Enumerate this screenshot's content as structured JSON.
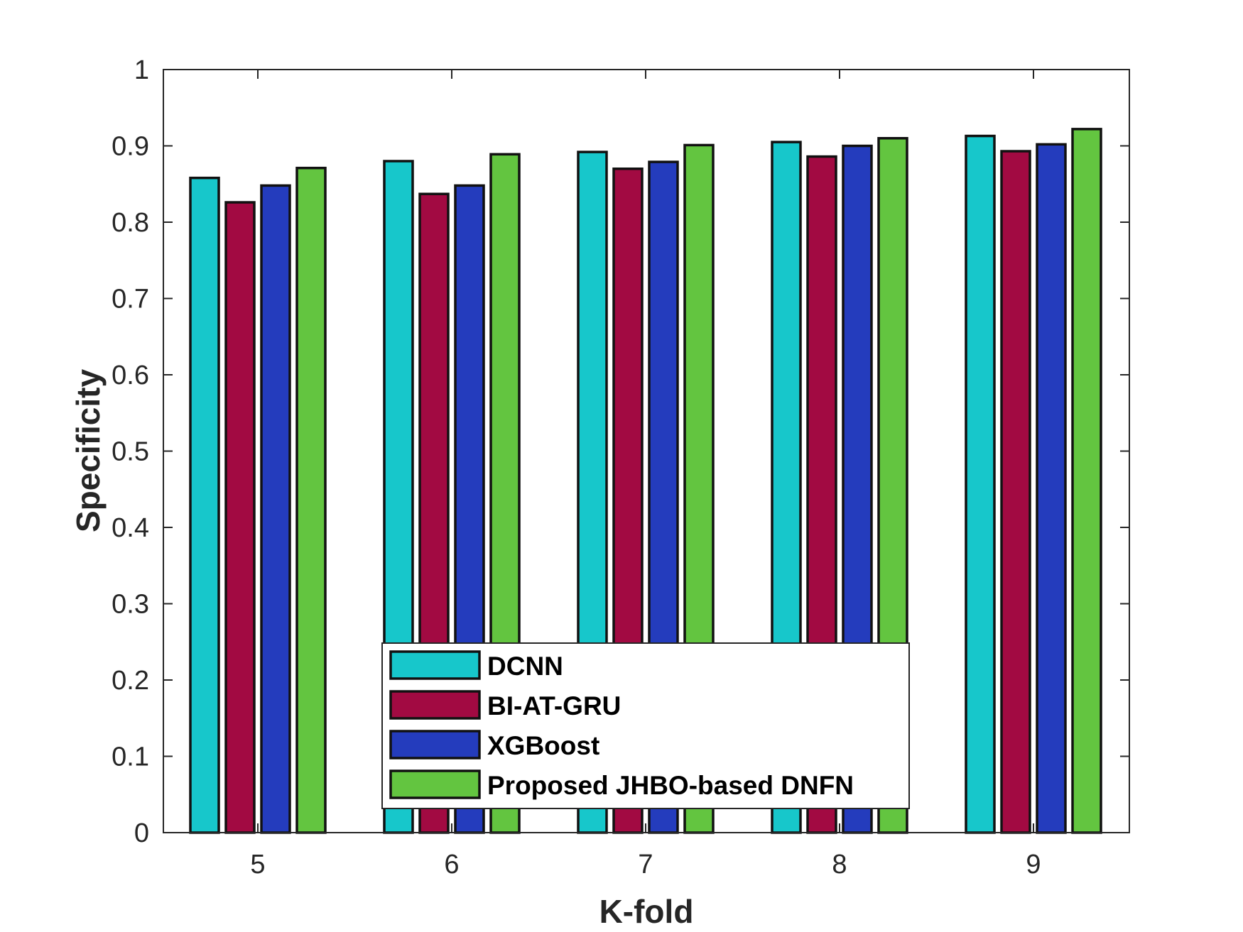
{
  "chart_data": {
    "type": "bar",
    "xlabel": "K-fold",
    "ylabel": "Specificity",
    "categories": [
      "5",
      "6",
      "7",
      "8",
      "9"
    ],
    "ylim": [
      0,
      1
    ],
    "yticks": [
      "0",
      "0.1",
      "0.2",
      "0.3",
      "0.4",
      "0.5",
      "0.6",
      "0.7",
      "0.8",
      "0.9",
      "1"
    ],
    "grid": false,
    "legend_position": "bottom-center",
    "series": [
      {
        "name": "DCNN",
        "color": "#17C7CB",
        "values": [
          0.858,
          0.88,
          0.892,
          0.905,
          0.913
        ]
      },
      {
        "name": "BI-AT-GRU",
        "color": "#A20A42",
        "values": [
          0.826,
          0.837,
          0.87,
          0.886,
          0.893
        ]
      },
      {
        "name": "XGBoost",
        "color": "#243CBD",
        "values": [
          0.848,
          0.848,
          0.879,
          0.9,
          0.902
        ]
      },
      {
        "name": "Proposed JHBO-based DNFN",
        "color": "#63C540",
        "values": [
          0.871,
          0.889,
          0.901,
          0.91,
          0.922
        ]
      }
    ]
  }
}
